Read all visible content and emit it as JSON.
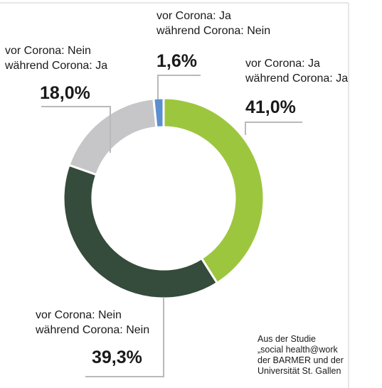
{
  "chart_data": {
    "type": "pie",
    "variant": "donut",
    "slices": [
      {
        "label_line1": "vor Corona: Ja",
        "label_line2": "während Corona: Ja",
        "value": 41.0,
        "display": "41,0%",
        "color": "#9dc63f"
      },
      {
        "label_line1": "vor Corona: Nein",
        "label_line2": "während Corona: Nein",
        "value": 39.3,
        "display": "39,3%",
        "color": "#354b3b"
      },
      {
        "label_line1": "vor Corona: Nein",
        "label_line2": "während Corona: Ja",
        "value": 18.0,
        "display": "18,0%",
        "color": "#c6c6c8"
      },
      {
        "label_line1": "vor Corona: Ja",
        "label_line2": "während Corona: Nein",
        "value": 1.6,
        "display": "1,6%",
        "color": "#5b8fd0"
      }
    ],
    "source": [
      "Aus der Studie",
      "„social health@work",
      "der BARMER und der",
      "Universität St. Gallen"
    ]
  },
  "colors": {
    "leader_line": "#b9b9b9",
    "separator": "#ffffff",
    "frame_line": "#cfcfcf"
  }
}
